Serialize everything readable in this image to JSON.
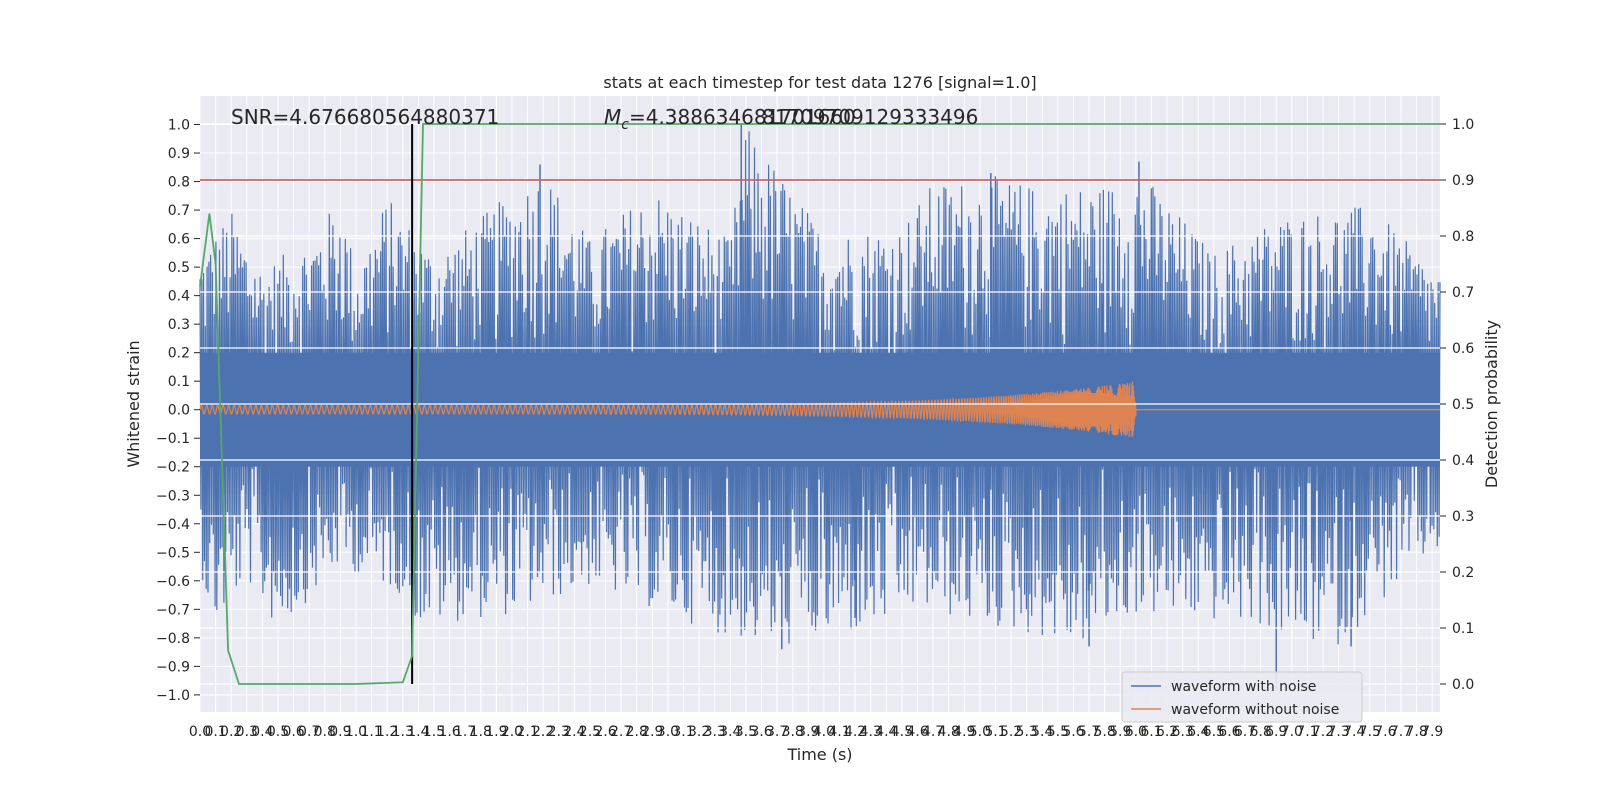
{
  "colors": {
    "figure_bg": "#ffffff",
    "axes_bg": "#eaeaf2",
    "grid": "#ffffff",
    "noisy": "#4c72b0",
    "clean": "#dd8452",
    "probability": "#55a868",
    "threshold": "#c44e52",
    "marker": "#000000",
    "text": "#262626"
  },
  "chart_data": {
    "type": "line",
    "title": "stats at each timestep for test data 1276 [signal=1.0]",
    "xlabel": "Time (s)",
    "ylabel": "Whitened strain",
    "y2label": "Detection probability",
    "xlim": [
      0.0,
      7.95
    ],
    "ylim": [
      -1.06,
      1.1
    ],
    "y2lim": [
      -0.05,
      1.05
    ],
    "x_ticks": [
      0.0,
      0.1,
      0.2,
      0.3,
      0.4,
      0.5,
      0.6,
      0.7,
      0.8,
      0.9,
      1.0,
      1.1,
      1.2,
      1.3,
      1.4,
      1.5,
      1.6,
      1.7,
      1.8,
      1.9,
      2.0,
      2.1,
      2.2,
      2.3,
      2.4,
      2.5,
      2.6,
      2.7,
      2.8,
      2.9,
      3.0,
      3.1,
      3.2,
      3.3,
      3.4,
      3.5,
      3.6,
      3.7,
      3.8,
      3.9,
      4.0,
      4.1,
      4.2,
      4.3,
      4.4,
      4.5,
      4.6,
      4.7,
      4.8,
      4.9,
      5.0,
      5.1,
      5.2,
      5.3,
      5.4,
      5.5,
      5.6,
      5.7,
      5.8,
      5.9,
      6.0,
      6.1,
      6.2,
      6.3,
      6.4,
      6.5,
      6.6,
      6.7,
      6.8,
      6.9,
      7.0,
      7.1,
      7.2,
      7.3,
      7.4,
      7.5,
      7.6,
      7.7,
      7.8,
      7.9
    ],
    "x_tick_labels": [
      "0.0",
      "0.1",
      "0.2",
      "0.3",
      "0.4",
      "0.5",
      "0.6",
      "0.7",
      "0.8",
      "0.9",
      "1.0",
      "1.1",
      "1.2",
      "1.3",
      "1.4",
      "1.5",
      "1.6",
      "1.7",
      "1.8",
      "1.9",
      "2.0",
      "2.1",
      "2.2",
      "2.3",
      "2.4",
      "2.5",
      "2.6",
      "2.7",
      "2.8",
      "2.9",
      "3.0",
      "3.1",
      "3.2",
      "3.3",
      "3.4",
      "3.5",
      "3.6",
      "3.7",
      "3.8",
      "3.9",
      "4.0",
      "4.1",
      "4.2",
      "4.3",
      "4.4",
      "4.5",
      "4.6",
      "4.7",
      "4.8",
      "4.9",
      "5.0",
      "5.1",
      "5.2",
      "5.3",
      "5.4",
      "5.5",
      "5.6",
      "5.7",
      "5.8",
      "5.9",
      "6.0",
      "6.1",
      "6.2",
      "6.3",
      "6.4",
      "6.5",
      "6.6",
      "6.7",
      "6.8",
      "6.9",
      "7.0",
      "7.1",
      "7.2",
      "7.3",
      "7.4",
      "7.5",
      "7.6",
      "7.7",
      "7.8",
      "7.9"
    ],
    "y_ticks": [
      1.0,
      0.9,
      0.8,
      0.7,
      0.6,
      0.5,
      0.4,
      0.3,
      0.2,
      0.1,
      0.0,
      -0.1,
      -0.2,
      -0.3,
      -0.4,
      -0.5,
      -0.6,
      -0.7,
      -0.8,
      -0.9,
      -1.0
    ],
    "y_tick_labels": [
      "1.0",
      "0.9",
      "0.8",
      "0.7",
      "0.6",
      "0.5",
      "0.4",
      "0.3",
      "0.2",
      "0.1",
      "0.0",
      "−0.1",
      "−0.2",
      "−0.3",
      "−0.4",
      "−0.5",
      "−0.6",
      "−0.7",
      "−0.8",
      "−0.9",
      "−1.0"
    ],
    "y2_ticks": [
      1.0,
      0.9,
      0.8,
      0.7,
      0.6,
      0.5,
      0.4,
      0.3,
      0.2,
      0.1,
      0.0
    ],
    "y2_tick_labels": [
      "1.0",
      "0.9",
      "0.8",
      "0.7",
      "0.6",
      "0.5",
      "0.4",
      "0.3",
      "0.2",
      "0.1",
      "0.0"
    ],
    "grid": true,
    "legend_position": "lower-right",
    "annotations": {
      "snr": "SNR=4.676680564880371",
      "mc_prefix": "M",
      "mc_sub": "c",
      "mc_value": "=4.388634681701660",
      "overlap": "81709709129333496"
    },
    "marker_time": 1.36,
    "threshold_probability": 0.9,
    "noise_envelope": {
      "upper": [
        [
          0.0,
          0.55
        ],
        [
          0.2,
          0.7
        ],
        [
          0.4,
          0.5
        ],
        [
          0.7,
          0.6
        ],
        [
          0.9,
          0.75
        ],
        [
          1.0,
          0.5
        ],
        [
          1.2,
          0.75
        ],
        [
          1.5,
          0.55
        ],
        [
          2.2,
          0.85
        ],
        [
          2.5,
          0.6
        ],
        [
          2.9,
          0.78
        ],
        [
          3.4,
          0.6
        ],
        [
          3.5,
          1.0
        ],
        [
          4.0,
          0.62
        ],
        [
          4.5,
          0.65
        ],
        [
          4.7,
          0.8
        ],
        [
          5.1,
          0.82
        ],
        [
          5.4,
          0.78
        ],
        [
          5.9,
          0.8
        ],
        [
          6.0,
          0.86
        ],
        [
          6.5,
          0.55
        ],
        [
          6.9,
          0.68
        ],
        [
          7.5,
          0.72
        ],
        [
          7.9,
          0.5
        ]
      ],
      "lower": [
        [
          0.0,
          -0.55
        ],
        [
          0.08,
          -0.78
        ],
        [
          0.3,
          -0.6
        ],
        [
          0.5,
          -0.78
        ],
        [
          0.9,
          -0.55
        ],
        [
          1.3,
          -0.65
        ],
        [
          1.4,
          -0.76
        ],
        [
          2.0,
          -0.72
        ],
        [
          2.5,
          -0.62
        ],
        [
          3.4,
          -0.8
        ],
        [
          3.7,
          -0.84
        ],
        [
          4.3,
          -0.78
        ],
        [
          4.6,
          -0.7
        ],
        [
          5.0,
          -0.76
        ],
        [
          5.4,
          -0.8
        ],
        [
          5.6,
          -0.84
        ],
        [
          6.0,
          -0.72
        ],
        [
          6.8,
          -0.76
        ],
        [
          7.0,
          -0.82
        ],
        [
          7.3,
          -0.83
        ],
        [
          7.9,
          -0.5
        ]
      ]
    },
    "noise_spikes": [
      [
        3.47,
        1.0
      ],
      [
        2.18,
        0.86
      ],
      [
        5.07,
        0.83
      ],
      [
        6.02,
        0.87
      ],
      [
        4.2,
        -0.73
      ],
      [
        6.9,
        -0.98
      ],
      [
        7.38,
        -0.83
      ],
      [
        3.73,
        -0.84
      ],
      [
        5.7,
        -0.83
      ]
    ],
    "series": [
      {
        "name": "waveform with noise",
        "axis": "left",
        "description_points": []
      },
      {
        "name": "waveform without noise",
        "axis": "left",
        "chirp": {
          "start_amp": 0.015,
          "end_amp": 0.1,
          "end_time": 6.0,
          "start_period": 0.035,
          "end_period": 0.004
        }
      },
      {
        "name": "",
        "axis": "right",
        "x": [
          0.0,
          0.06,
          0.1,
          0.18,
          0.25,
          0.5,
          1.0,
          1.3,
          1.36,
          1.43,
          2.0,
          3.0,
          4.0,
          5.0,
          6.0,
          7.0,
          7.95
        ],
        "y": [
          0.71,
          0.84,
          0.75,
          0.06,
          0.0,
          0.0,
          0.0,
          0.003,
          0.05,
          1.0,
          1.0,
          1.0,
          1.0,
          1.0,
          1.0,
          1.0,
          1.0
        ]
      }
    ]
  }
}
